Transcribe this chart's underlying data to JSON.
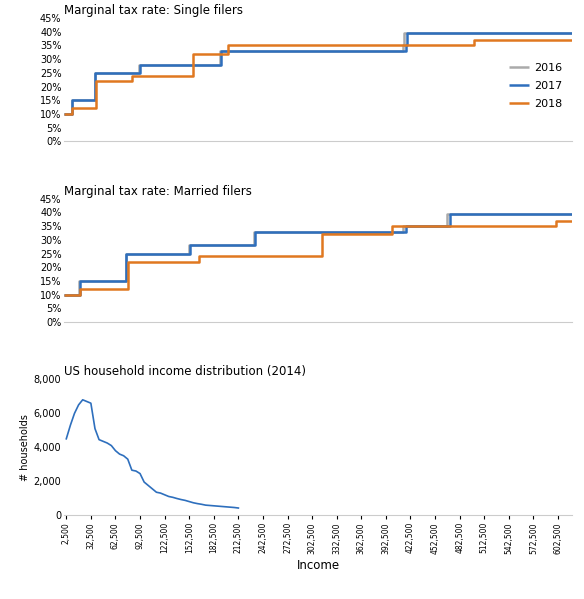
{
  "single_2016": {
    "brackets": [
      0,
      9275,
      37650,
      91150,
      190150,
      413350,
      415050,
      620000
    ],
    "rates": [
      0.1,
      0.15,
      0.25,
      0.28,
      0.33,
      0.35,
      0.396,
      0.396
    ]
  },
  "single_2017": {
    "brackets": [
      0,
      9325,
      37950,
      91900,
      191650,
      416700,
      418400,
      620000
    ],
    "rates": [
      0.1,
      0.15,
      0.25,
      0.28,
      0.33,
      0.35,
      0.396,
      0.396
    ]
  },
  "single_2018": {
    "brackets": [
      0,
      9525,
      38700,
      82500,
      157500,
      200000,
      500000,
      620000
    ],
    "rates": [
      0.1,
      0.12,
      0.22,
      0.24,
      0.32,
      0.35,
      0.37,
      0.37
    ]
  },
  "married_2016": {
    "brackets": [
      0,
      18550,
      75300,
      151900,
      231450,
      413350,
      466950,
      620000
    ],
    "rates": [
      0.1,
      0.15,
      0.25,
      0.28,
      0.33,
      0.35,
      0.396,
      0.396
    ]
  },
  "married_2017": {
    "brackets": [
      0,
      18650,
      75900,
      153100,
      233350,
      416700,
      470700,
      620000
    ],
    "rates": [
      0.1,
      0.15,
      0.25,
      0.28,
      0.33,
      0.35,
      0.396,
      0.396
    ]
  },
  "married_2018": {
    "brackets": [
      0,
      19050,
      77400,
      165000,
      315000,
      400000,
      600000,
      620000
    ],
    "rates": [
      0.1,
      0.12,
      0.22,
      0.24,
      0.32,
      0.35,
      0.37,
      0.37
    ]
  },
  "income_dist_x": [
    2500,
    7500,
    12500,
    17500,
    22500,
    27500,
    32500,
    37500,
    42500,
    47500,
    52500,
    57500,
    62500,
    67500,
    72500,
    77500,
    82500,
    87500,
    92500,
    97500,
    102500,
    107500,
    112500,
    117500,
    122500,
    127500,
    132500,
    137500,
    142500,
    147500,
    152500,
    157500,
    162500,
    167500,
    172500,
    177500,
    182500,
    187500,
    192500,
    197500,
    202500,
    207500,
    212500
  ],
  "income_dist_y": [
    4500,
    5300,
    6000,
    6500,
    6800,
    6700,
    6600,
    5100,
    4450,
    4350,
    4250,
    4100,
    3800,
    3600,
    3500,
    3300,
    2650,
    2600,
    2450,
    1950,
    1750,
    1550,
    1350,
    1300,
    1200,
    1100,
    1050,
    980,
    920,
    870,
    800,
    730,
    680,
    640,
    590,
    570,
    550,
    530,
    510,
    490,
    470,
    450,
    420
  ],
  "color_2016": "#aaaaaa",
  "color_2017": "#2e6fbd",
  "color_2018": "#e07820",
  "color_dist": "#2e6fbd",
  "title_single": "Marginal tax rate: Single filers",
  "title_married": "Marginal tax rate: Married filers",
  "title_dist": "US household income distribution (2014)",
  "ylabel_dist": "# households",
  "xlabel_dist": "Income",
  "xlim": [
    0,
    620000
  ],
  "ylim_tax": [
    0,
    0.45
  ],
  "ylim_dist": [
    0,
    8000
  ],
  "x_ticks_dist": [
    2500,
    32500,
    62500,
    92500,
    122500,
    152500,
    182500,
    212500,
    242500,
    272500,
    302500,
    332500,
    362500,
    392500,
    422500,
    452500,
    482500,
    512500,
    542500,
    572500,
    602500
  ],
  "legend_labels": [
    "2016",
    "2017",
    "2018"
  ]
}
